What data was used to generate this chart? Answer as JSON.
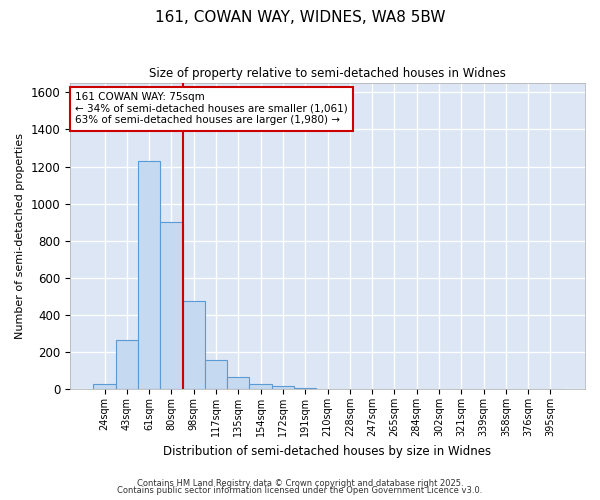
{
  "title_line1": "161, COWAN WAY, WIDNES, WA8 5BW",
  "title_line2": "Size of property relative to semi-detached houses in Widnes",
  "categories": [
    "24sqm",
    "43sqm",
    "61sqm",
    "80sqm",
    "98sqm",
    "117sqm",
    "135sqm",
    "154sqm",
    "172sqm",
    "191sqm",
    "210sqm",
    "228sqm",
    "247sqm",
    "265sqm",
    "284sqm",
    "302sqm",
    "321sqm",
    "339sqm",
    "358sqm",
    "376sqm",
    "395sqm"
  ],
  "values": [
    28,
    265,
    1230,
    900,
    475,
    155,
    65,
    30,
    18,
    8,
    0,
    0,
    0,
    0,
    0,
    0,
    0,
    0,
    0,
    0,
    0
  ],
  "bar_color": "#c5d9f0",
  "bar_edge_color": "#5b9bd5",
  "bar_width": 1.0,
  "vline_x": 3.5,
  "vline_color": "#cc0000",
  "annotation_text": "161 COWAN WAY: 75sqm\n← 34% of semi-detached houses are smaller (1,061)\n63% of semi-detached houses are larger (1,980) →",
  "annotation_box_color": "#ffffff",
  "annotation_box_edge": "#cc0000",
  "ylabel": "Number of semi-detached properties",
  "xlabel": "Distribution of semi-detached houses by size in Widnes",
  "ylim": [
    0,
    1650
  ],
  "yticks": [
    0,
    200,
    400,
    600,
    800,
    1000,
    1200,
    1400,
    1600
  ],
  "background_color": "#dce6f5",
  "grid_color": "#ffffff",
  "fig_background": "#ffffff",
  "footer_line1": "Contains HM Land Registry data © Crown copyright and database right 2025.",
  "footer_line2": "Contains public sector information licensed under the Open Government Licence v3.0."
}
